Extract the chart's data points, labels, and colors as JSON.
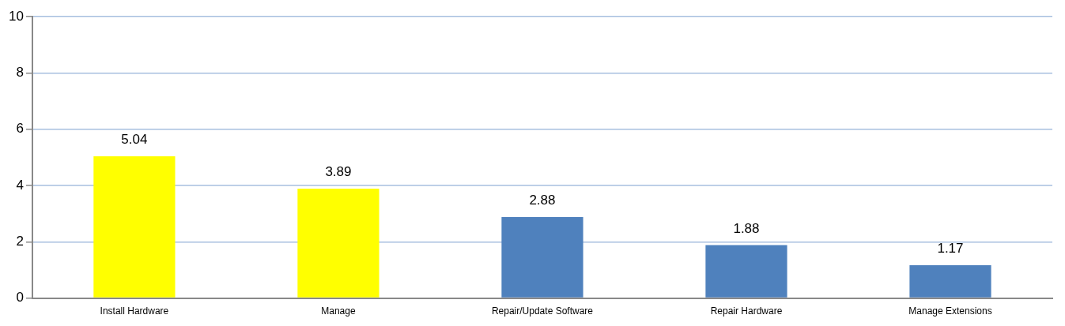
{
  "chart_data": {
    "type": "bar",
    "categories": [
      "Install Hardware",
      "Manage",
      "Repair/Update Software",
      "Repair Hardware",
      "Manage Extensions"
    ],
    "values": [
      5.04,
      3.89,
      2.88,
      1.88,
      1.17
    ],
    "colors": [
      "#ffff00",
      "#ffff00",
      "#4f81bd",
      "#4f81bd",
      "#4f81bd"
    ],
    "ylim": [
      0,
      10
    ],
    "yticks": [
      0,
      2,
      4,
      6,
      8,
      10
    ],
    "grid": "y",
    "legend": false,
    "data_labels": true
  }
}
